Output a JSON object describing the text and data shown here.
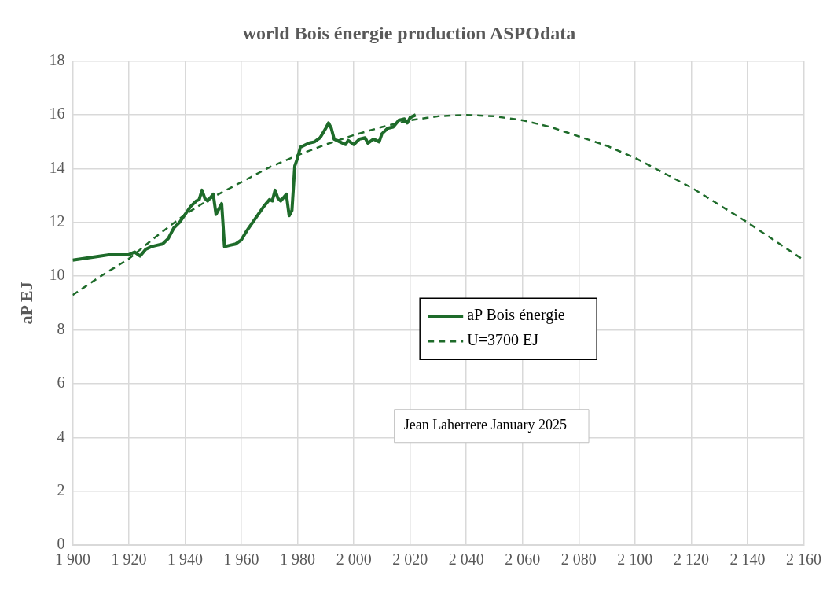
{
  "chart_data": {
    "type": "line",
    "title": "world Bois énergie production ASPOdata",
    "ylabel": "aP EJ",
    "xlim": [
      1900,
      2160
    ],
    "xticks": [
      {
        "value": 1900,
        "label": "1 900"
      },
      {
        "value": 1920,
        "label": "1 920"
      },
      {
        "value": 1940,
        "label": "1 940"
      },
      {
        "value": 1960,
        "label": "1 960"
      },
      {
        "value": 1980,
        "label": "1 980"
      },
      {
        "value": 2000,
        "label": "2 000"
      },
      {
        "value": 2020,
        "label": "2 020"
      },
      {
        "value": 2040,
        "label": "2 040"
      },
      {
        "value": 2060,
        "label": "2 060"
      },
      {
        "value": 2080,
        "label": "2 080"
      },
      {
        "value": 2100,
        "label": "2 100"
      },
      {
        "value": 2120,
        "label": "2 120"
      },
      {
        "value": 2140,
        "label": "2 140"
      },
      {
        "value": 2160,
        "label": "2 160"
      }
    ],
    "ylim": [
      0,
      18
    ],
    "yticks": [
      0,
      2,
      4,
      6,
      8,
      10,
      12,
      14,
      16,
      18
    ],
    "grid": true,
    "legend": "center",
    "annotations": [
      "Jean Laherrere January 2025"
    ],
    "series": [
      {
        "name": "aP Bois énergie",
        "color": "#1e6b2a",
        "line_style": "solid",
        "x": [
          1900,
          1910,
          1913,
          1920,
          1922,
          1924,
          1926,
          1928,
          1930,
          1932,
          1934,
          1936,
          1938,
          1940,
          1942,
          1944,
          1945,
          1946,
          1947,
          1948,
          1950,
          1951,
          1952,
          1953,
          1954,
          1956,
          1958,
          1960,
          1962,
          1964,
          1966,
          1968,
          1970,
          1971,
          1972,
          1973,
          1974,
          1976,
          1977,
          1978,
          1979,
          1980,
          1981,
          1982,
          1984,
          1986,
          1988,
          1990,
          1991,
          1992,
          1993,
          1995,
          1997,
          1998,
          2000,
          2002,
          2004,
          2005,
          2007,
          2009,
          2010,
          2012,
          2014,
          2016,
          2018,
          2019,
          2020,
          2022
        ],
        "values": [
          10.6,
          10.75,
          10.8,
          10.8,
          10.9,
          10.75,
          11.0,
          11.1,
          11.15,
          11.2,
          11.4,
          11.8,
          12.0,
          12.3,
          12.6,
          12.8,
          12.85,
          13.2,
          12.9,
          12.8,
          13.05,
          12.3,
          12.5,
          12.7,
          11.1,
          11.15,
          11.2,
          11.35,
          11.7,
          12.0,
          12.3,
          12.6,
          12.85,
          12.8,
          13.2,
          12.9,
          12.8,
          13.05,
          12.25,
          12.45,
          14.1,
          14.4,
          14.8,
          14.85,
          14.95,
          15.0,
          15.15,
          15.5,
          15.7,
          15.5,
          15.1,
          15.0,
          14.9,
          15.05,
          14.9,
          15.1,
          15.15,
          14.95,
          15.1,
          15.0,
          15.3,
          15.5,
          15.55,
          15.8,
          15.85,
          15.7,
          15.9,
          16.0
        ]
      },
      {
        "name": "U=3700 EJ",
        "color": "#1e6b2a",
        "line_style": "dashed",
        "x": [
          1900,
          1910,
          1920,
          1930,
          1940,
          1950,
          1960,
          1970,
          1980,
          1990,
          2000,
          2010,
          2020,
          2030,
          2040,
          2050,
          2060,
          2070,
          2080,
          2090,
          2100,
          2110,
          2120,
          2130,
          2140,
          2150,
          2160
        ],
        "values": [
          9.3,
          10.0,
          10.65,
          11.5,
          12.3,
          12.95,
          13.5,
          14.05,
          14.5,
          14.9,
          15.25,
          15.55,
          15.8,
          15.95,
          16.0,
          15.95,
          15.8,
          15.55,
          15.2,
          14.85,
          14.4,
          13.85,
          13.3,
          12.65,
          12.0,
          11.3,
          10.6
        ]
      }
    ]
  }
}
